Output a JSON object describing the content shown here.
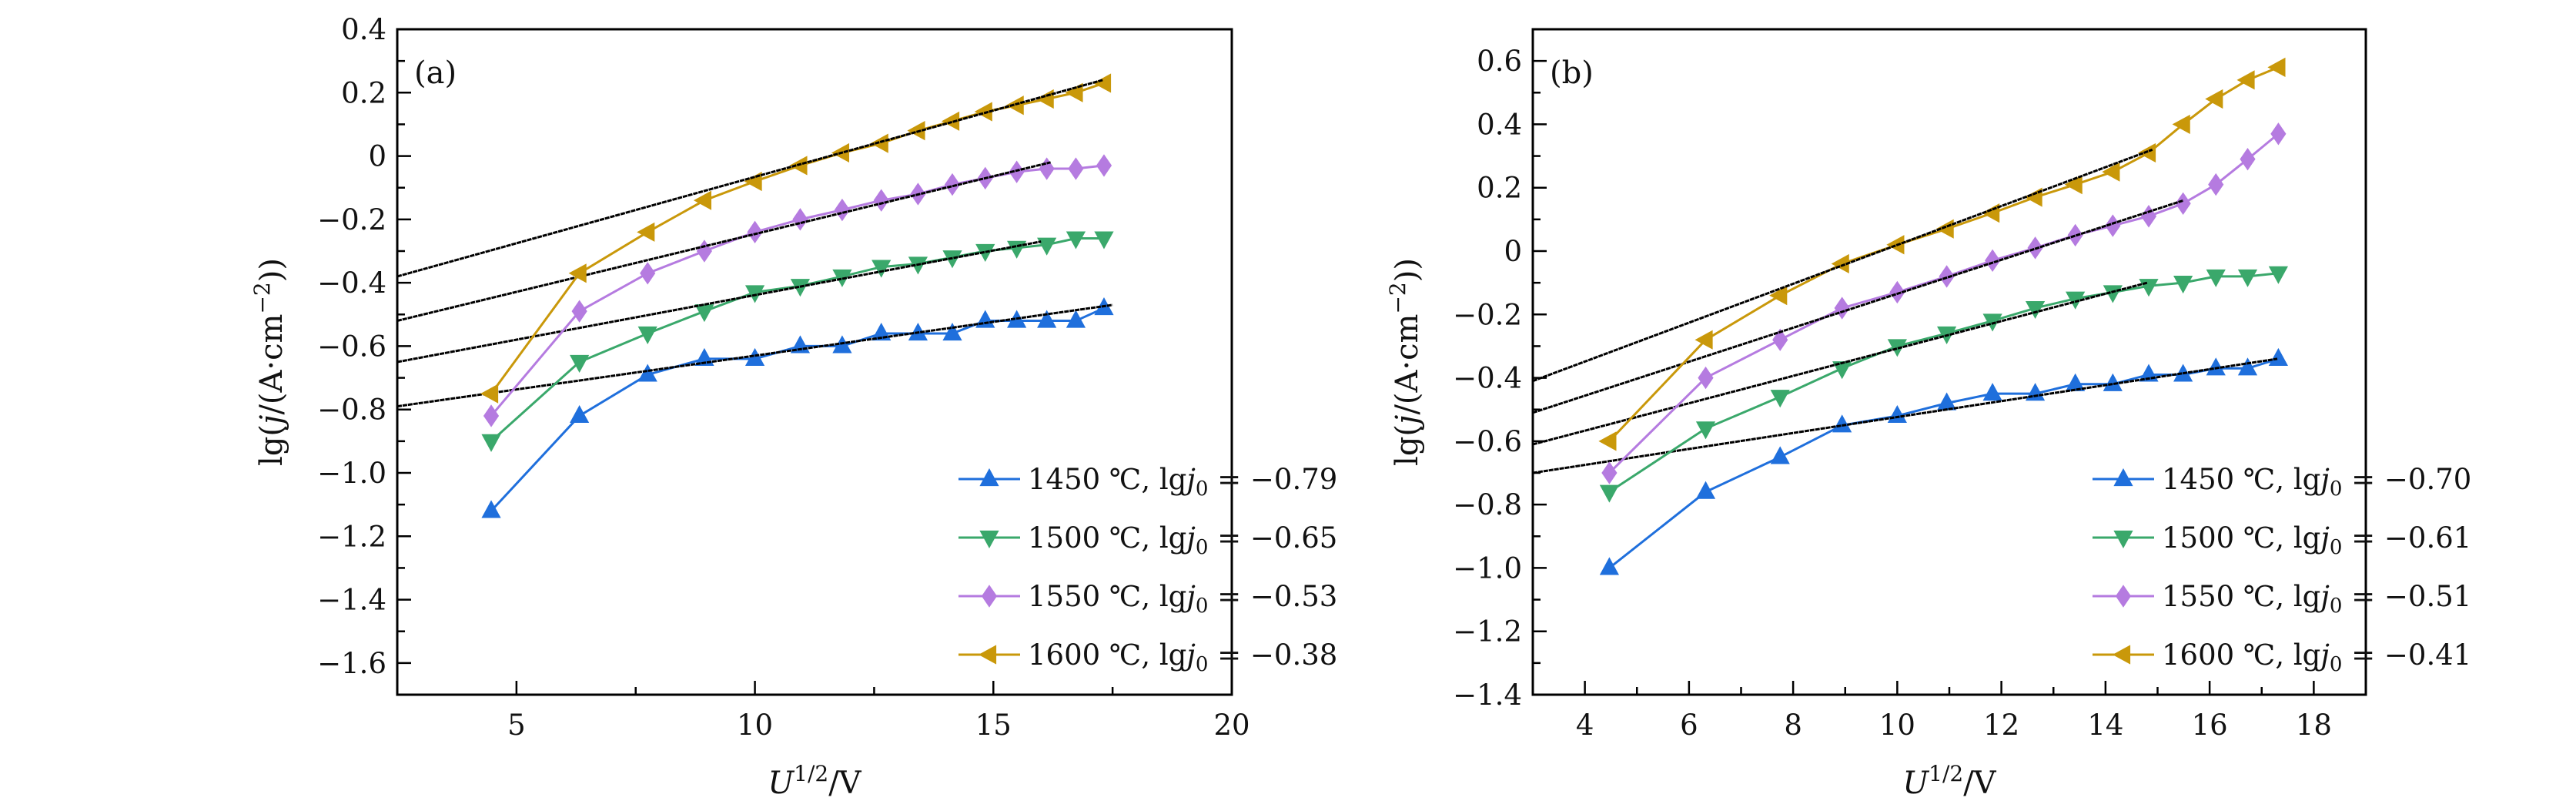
{
  "chart_data": [
    {
      "type": "line",
      "panel_label": "(a)",
      "xlabel": "U1/2/V",
      "ylabel": "lg(j/(A·cm−2))",
      "xlim": [
        2.5,
        20
      ],
      "ylim": [
        -1.7,
        0.4
      ],
      "xticks": [
        5,
        10,
        15,
        20
      ],
      "xtick_labels": [
        "5",
        "10",
        "15",
        "20"
      ],
      "yticks": [
        -1.6,
        -1.4,
        -1.2,
        -1.0,
        -0.8,
        -0.6,
        -0.4,
        -0.2,
        0,
        0.2,
        0.4
      ],
      "ytick_labels": [
        "−1.6",
        "−1.4",
        "−1.2",
        "−1.0",
        "−0.8",
        "−0.6",
        "−0.4",
        "−0.2",
        "0",
        "0.2",
        "0.4"
      ],
      "grid": false,
      "legend_position": "bottom-right",
      "x": [
        4.47,
        6.32,
        7.75,
        8.94,
        10.0,
        10.95,
        11.83,
        12.65,
        13.42,
        14.14,
        14.83,
        15.49,
        16.12,
        16.73,
        17.32
      ],
      "series": [
        {
          "name": "1450 ℃, lgj0 = −0.79",
          "color": "#1f6fdc",
          "marker": "triangle-up",
          "values": [
            -1.12,
            -0.82,
            -0.69,
            -0.64,
            -0.64,
            -0.6,
            -0.6,
            -0.56,
            -0.56,
            -0.56,
            -0.52,
            -0.52,
            -0.52,
            -0.52,
            -0.48
          ],
          "fit": {
            "x": [
              2.5,
              17.5
            ],
            "y": [
              -0.79,
              -0.47
            ]
          }
        },
        {
          "name": "1500 ℃, lgj0 = −0.65",
          "color": "#3aa86b",
          "marker": "triangle-down",
          "values": [
            -0.9,
            -0.65,
            -0.56,
            -0.49,
            -0.43,
            -0.41,
            -0.38,
            -0.35,
            -0.34,
            -0.32,
            -0.3,
            -0.29,
            -0.28,
            -0.26,
            -0.26
          ],
          "fit": {
            "x": [
              2.5,
              16.0
            ],
            "y": [
              -0.65,
              -0.27
            ]
          }
        },
        {
          "name": "1550 ℃, lgj0 = −0.53",
          "color": "#b57be0",
          "marker": "diamond",
          "values": [
            -0.82,
            -0.49,
            -0.37,
            -0.3,
            -0.24,
            -0.2,
            -0.17,
            -0.14,
            -0.12,
            -0.09,
            -0.07,
            -0.05,
            -0.04,
            -0.04,
            -0.03
          ],
          "fit": {
            "x": [
              2.5,
              16.2
            ],
            "y": [
              -0.52,
              -0.02
            ]
          }
        },
        {
          "name": "1600 ℃, lgj0 = −0.38",
          "color": "#c9980a",
          "marker": "triangle-left",
          "values": [
            -0.75,
            -0.37,
            -0.24,
            -0.14,
            -0.08,
            -0.03,
            0.01,
            0.04,
            0.08,
            0.11,
            0.14,
            0.16,
            0.18,
            0.2,
            0.23
          ],
          "fit": {
            "x": [
              2.5,
              17.3
            ],
            "y": [
              -0.38,
              0.24
            ]
          }
        }
      ]
    },
    {
      "type": "line",
      "panel_label": "(b)",
      "xlabel": "U1/2/V",
      "ylabel": "lg(j/(A·cm−2))",
      "xlim": [
        3,
        19
      ],
      "ylim": [
        -1.4,
        0.7
      ],
      "xticks": [
        4,
        6,
        8,
        10,
        12,
        14,
        16,
        18
      ],
      "xtick_labels": [
        "4",
        "6",
        "8",
        "10",
        "12",
        "14",
        "16",
        "18"
      ],
      "yticks": [
        -1.4,
        -1.2,
        -1.0,
        -0.8,
        -0.6,
        -0.4,
        -0.2,
        0,
        0.2,
        0.4,
        0.6
      ],
      "ytick_labels": [
        "−1.4",
        "−1.2",
        "−1.0",
        "−0.8",
        "−0.6",
        "−0.4",
        "−0.2",
        "0",
        "0.2",
        "0.4",
        "0.6"
      ],
      "grid": false,
      "legend_position": "bottom-right",
      "x": [
        4.47,
        6.32,
        7.75,
        8.94,
        10.0,
        10.95,
        11.83,
        12.65,
        13.42,
        14.14,
        14.83,
        15.49,
        16.12,
        16.73,
        17.32
      ],
      "series": [
        {
          "name": "1450 ℃, lgj0 = −0.70",
          "color": "#1f6fdc",
          "marker": "triangle-up",
          "values": [
            -1.0,
            -0.76,
            -0.65,
            -0.55,
            -0.52,
            -0.48,
            -0.45,
            -0.45,
            -0.42,
            -0.42,
            -0.39,
            -0.39,
            -0.37,
            -0.37,
            -0.34
          ],
          "fit": {
            "x": [
              3,
              17.3
            ],
            "y": [
              -0.7,
              -0.34
            ]
          }
        },
        {
          "name": "1500 ℃, lgj0 = −0.61",
          "color": "#3aa86b",
          "marker": "triangle-down",
          "values": [
            -0.76,
            -0.56,
            -0.46,
            -0.37,
            -0.3,
            -0.26,
            -0.22,
            -0.18,
            -0.15,
            -0.13,
            -0.11,
            -0.1,
            -0.08,
            -0.08,
            -0.07
          ],
          "fit": {
            "x": [
              3,
              14.8
            ],
            "y": [
              -0.61,
              -0.1
            ]
          }
        },
        {
          "name": "1550 ℃, lgj0 = −0.51",
          "color": "#b57be0",
          "marker": "diamond",
          "values": [
            -0.7,
            -0.4,
            -0.28,
            -0.18,
            -0.13,
            -0.08,
            -0.03,
            0.01,
            0.05,
            0.08,
            0.11,
            0.15,
            0.21,
            0.29,
            0.37
          ],
          "fit": {
            "x": [
              3,
              15.5
            ],
            "y": [
              -0.51,
              0.16
            ]
          }
        },
        {
          "name": "1600 ℃, lgj0 = −0.41",
          "color": "#c9980a",
          "marker": "triangle-left",
          "values": [
            -0.6,
            -0.28,
            -0.14,
            -0.04,
            0.02,
            0.07,
            0.12,
            0.17,
            0.21,
            0.25,
            0.31,
            0.4,
            0.48,
            0.54,
            0.58
          ],
          "fit": {
            "x": [
              3,
              14.9
            ],
            "y": [
              -0.41,
              0.32
            ]
          }
        }
      ]
    }
  ]
}
